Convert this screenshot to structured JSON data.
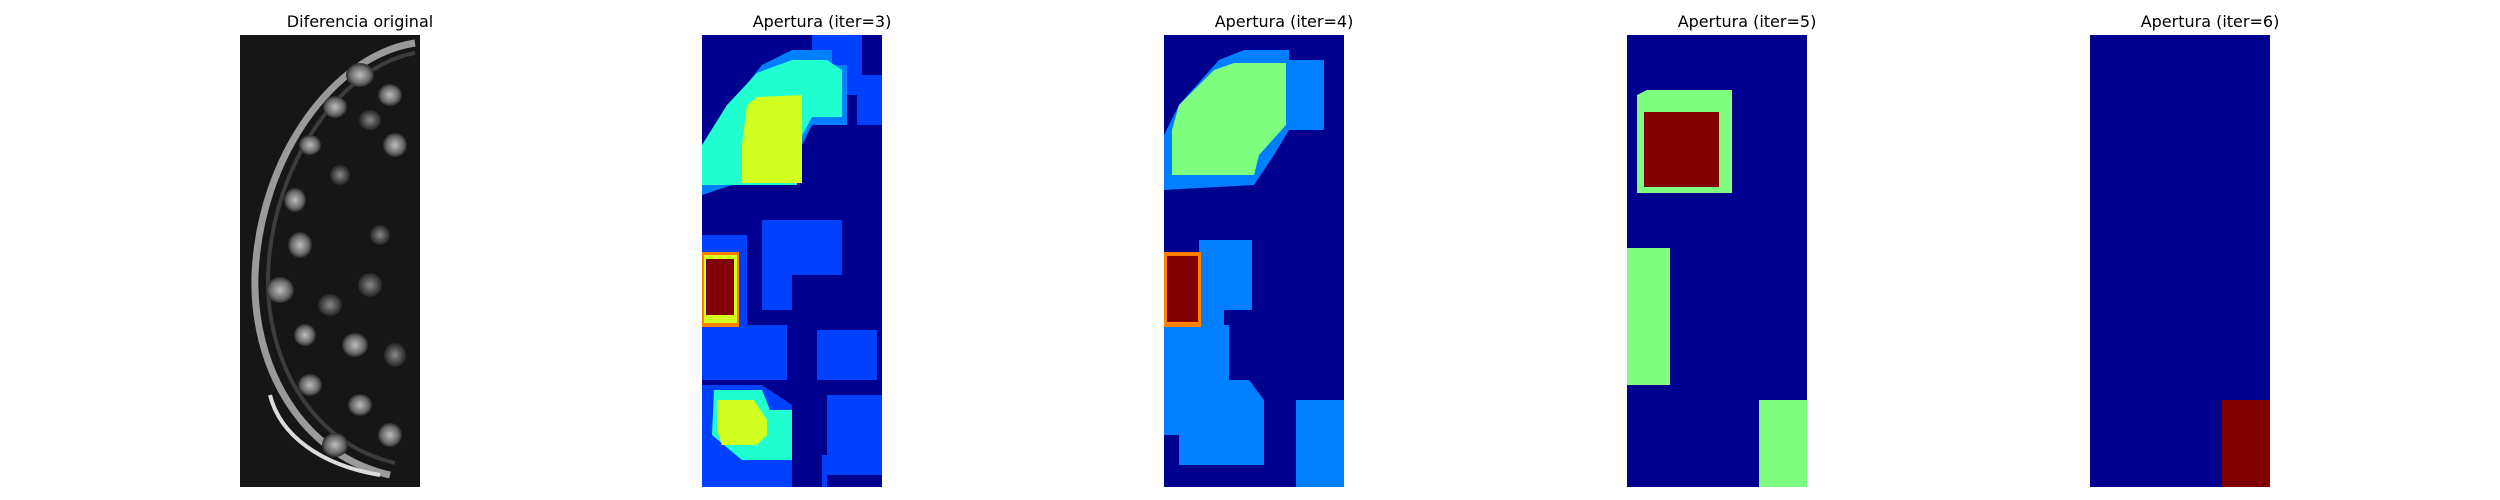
{
  "figure": {
    "panels": [
      {
        "title": "Diferencia original",
        "kind": "grayscale",
        "image": "grayscale-cell-difference"
      },
      {
        "title": "Apertura (iter=3)",
        "kind": "label-map",
        "colormap": "jet"
      },
      {
        "title": "Apertura (iter=4)",
        "kind": "label-map",
        "colormap": "jet"
      },
      {
        "title": "Apertura (iter=5)",
        "kind": "label-map",
        "colormap": "jet"
      },
      {
        "title": "Apertura (iter=6)",
        "kind": "label-map",
        "colormap": "jet"
      }
    ]
  },
  "colors": {
    "dark_blue": "#00008f",
    "blue": "#0040ff",
    "light_blue": "#0080ff",
    "cyan": "#20ffd0",
    "green": "#7fff7f",
    "yellow": "#d0ff20",
    "orange": "#ff8000",
    "dark_red": "#800000"
  }
}
